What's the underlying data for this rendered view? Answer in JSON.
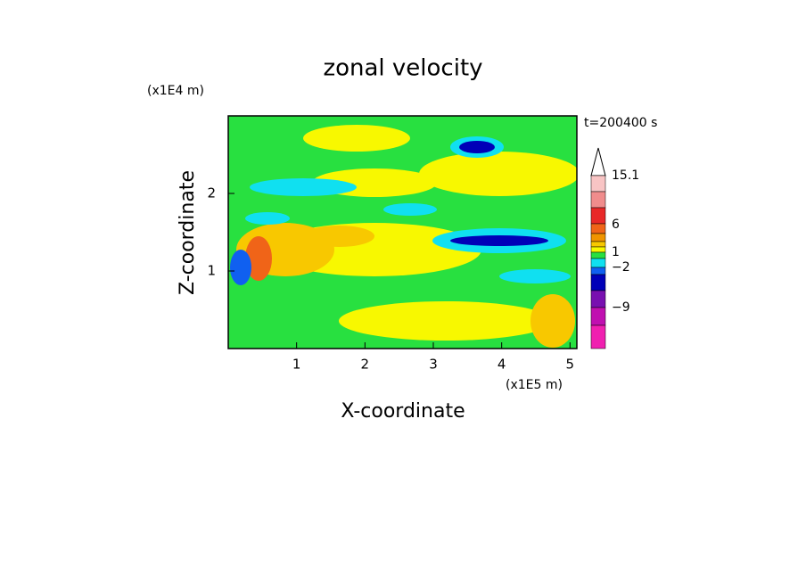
{
  "chart_data": {
    "type": "contour",
    "title": "zonal velocity",
    "x_label": "X-coordinate",
    "y_label": "Z-coordinate",
    "x_unit": "(x1E5 m)",
    "y_unit": "(x1E4 m)",
    "annotation": "t=200400 s",
    "xlim": [
      0,
      5.1
    ],
    "ylim": [
      0,
      3
    ],
    "xticks": [
      1,
      2,
      3,
      4,
      5
    ],
    "yticks": [
      1,
      2
    ],
    "colorbar": {
      "colors": [
        "#f8c4c4",
        "#f08c8c",
        "#e82828",
        "#f06418",
        "#f09400",
        "#f8c800",
        "#f8f800",
        "#28e040",
        "#10e0f0",
        "#1060f0",
        "#0000b8",
        "#7810b0",
        "#c010b0",
        "#f020b0"
      ],
      "labels": [
        "15.1",
        "6",
        "1",
        "−2",
        "−9"
      ]
    }
  }
}
